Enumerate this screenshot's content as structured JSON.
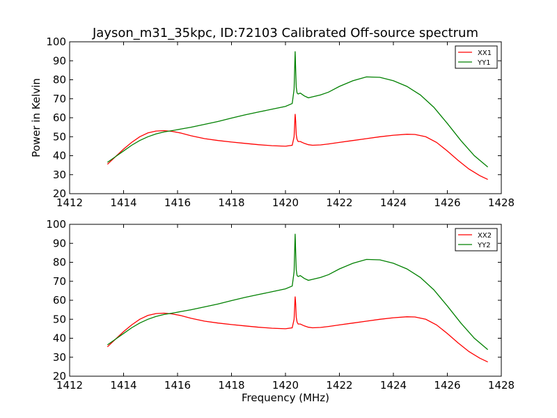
{
  "figure": {
    "title": "Jayson_m31_35kpc, ID:72103 Calibrated Off-source spectrum"
  },
  "chart_data": [
    {
      "type": "line",
      "title": "Jayson_m31_35kpc, ID:72103 Calibrated Off-source spectrum",
      "xlabel": "",
      "ylabel": "Power in Kelvin",
      "xlim": [
        1412,
        1428
      ],
      "ylim": [
        20,
        100
      ],
      "xticks": [
        1412,
        1414,
        1416,
        1418,
        1420,
        1422,
        1424,
        1426,
        1428
      ],
      "yticks": [
        20,
        30,
        40,
        50,
        60,
        70,
        80,
        90,
        100
      ],
      "grid": false,
      "legend_position": "top-right",
      "series": [
        {
          "name": "XX1",
          "color": "#ff0000",
          "x": [
            1413.4,
            1413.7,
            1414.0,
            1414.3,
            1414.6,
            1414.9,
            1415.2,
            1415.5,
            1415.8,
            1416.1,
            1416.5,
            1417.0,
            1417.5,
            1418.0,
            1418.5,
            1419.0,
            1419.5,
            1420.0,
            1420.25,
            1420.32,
            1420.36,
            1420.38,
            1420.4,
            1420.43,
            1420.47,
            1420.55,
            1420.7,
            1420.85,
            1421.0,
            1421.3,
            1421.6,
            1422.0,
            1422.5,
            1423.0,
            1423.5,
            1424.0,
            1424.5,
            1424.8,
            1425.2,
            1425.6,
            1426.0,
            1426.4,
            1426.8,
            1427.2,
            1427.5
          ],
          "y": [
            35.5,
            39.5,
            43.5,
            47.0,
            50.0,
            52.0,
            53.0,
            53.2,
            52.8,
            52.0,
            50.5,
            49.0,
            48.0,
            47.2,
            46.5,
            45.8,
            45.3,
            45.0,
            45.5,
            50.0,
            62.0,
            58.0,
            51.0,
            48.5,
            47.5,
            47.5,
            46.5,
            45.8,
            45.5,
            45.7,
            46.2,
            47.0,
            48.0,
            49.0,
            50.0,
            50.8,
            51.3,
            51.2,
            50.0,
            47.0,
            42.5,
            37.5,
            33.0,
            29.5,
            27.5
          ]
        },
        {
          "name": "YY1",
          "color": "#008000",
          "x": [
            1413.4,
            1413.7,
            1414.0,
            1414.3,
            1414.6,
            1414.9,
            1415.2,
            1415.5,
            1415.8,
            1416.1,
            1416.5,
            1417.0,
            1417.5,
            1418.0,
            1418.5,
            1419.0,
            1419.5,
            1420.0,
            1420.25,
            1420.32,
            1420.36,
            1420.38,
            1420.4,
            1420.43,
            1420.47,
            1420.55,
            1420.7,
            1420.85,
            1421.0,
            1421.3,
            1421.6,
            1422.0,
            1422.5,
            1423.0,
            1423.5,
            1424.0,
            1424.5,
            1425.0,
            1425.5,
            1426.0,
            1426.5,
            1427.0,
            1427.5
          ],
          "y": [
            36.5,
            39.5,
            42.5,
            45.5,
            48.0,
            50.0,
            51.5,
            52.5,
            53.2,
            54.0,
            55.0,
            56.5,
            58.0,
            59.8,
            61.5,
            63.0,
            64.5,
            66.0,
            67.5,
            75.0,
            95.0,
            85.0,
            76.0,
            73.0,
            72.5,
            73.0,
            71.5,
            70.5,
            71.0,
            72.0,
            73.5,
            76.5,
            79.5,
            81.5,
            81.3,
            79.5,
            76.5,
            72.0,
            65.5,
            57.0,
            48.0,
            40.0,
            34.0
          ]
        }
      ]
    },
    {
      "type": "line",
      "title": "",
      "xlabel": "Frequency (MHz)",
      "ylabel": "",
      "xlim": [
        1412,
        1428
      ],
      "ylim": [
        20,
        100
      ],
      "xticks": [
        1412,
        1414,
        1416,
        1418,
        1420,
        1422,
        1424,
        1426,
        1428
      ],
      "yticks": [
        20,
        30,
        40,
        50,
        60,
        70,
        80,
        90,
        100
      ],
      "grid": false,
      "legend_position": "top-right",
      "series": [
        {
          "name": "XX2",
          "color": "#ff0000",
          "x": [
            1413.4,
            1413.7,
            1414.0,
            1414.3,
            1414.6,
            1414.9,
            1415.2,
            1415.5,
            1415.8,
            1416.1,
            1416.5,
            1417.0,
            1417.5,
            1418.0,
            1418.5,
            1419.0,
            1419.5,
            1420.0,
            1420.25,
            1420.32,
            1420.36,
            1420.38,
            1420.4,
            1420.43,
            1420.47,
            1420.55,
            1420.7,
            1420.85,
            1421.0,
            1421.3,
            1421.6,
            1422.0,
            1422.5,
            1423.0,
            1423.5,
            1424.0,
            1424.5,
            1424.8,
            1425.2,
            1425.6,
            1426.0,
            1426.4,
            1426.8,
            1427.2,
            1427.5
          ],
          "y": [
            35.5,
            39.5,
            43.5,
            47.0,
            50.0,
            52.0,
            53.0,
            53.2,
            52.8,
            52.0,
            50.5,
            49.0,
            48.0,
            47.2,
            46.5,
            45.8,
            45.3,
            45.0,
            45.5,
            50.0,
            62.0,
            58.0,
            51.0,
            48.5,
            47.5,
            47.5,
            46.5,
            45.8,
            45.5,
            45.7,
            46.2,
            47.0,
            48.0,
            49.0,
            50.0,
            50.8,
            51.3,
            51.2,
            50.0,
            47.0,
            42.5,
            37.5,
            33.0,
            29.5,
            27.5
          ]
        },
        {
          "name": "YY2",
          "color": "#008000",
          "x": [
            1413.4,
            1413.7,
            1414.0,
            1414.3,
            1414.6,
            1414.9,
            1415.2,
            1415.5,
            1415.8,
            1416.1,
            1416.5,
            1417.0,
            1417.5,
            1418.0,
            1418.5,
            1419.0,
            1419.5,
            1420.0,
            1420.25,
            1420.32,
            1420.36,
            1420.38,
            1420.4,
            1420.43,
            1420.47,
            1420.55,
            1420.7,
            1420.85,
            1421.0,
            1421.3,
            1421.6,
            1422.0,
            1422.5,
            1423.0,
            1423.5,
            1424.0,
            1424.5,
            1425.0,
            1425.5,
            1426.0,
            1426.5,
            1427.0,
            1427.5
          ],
          "y": [
            36.5,
            39.5,
            42.5,
            45.5,
            48.0,
            50.0,
            51.5,
            52.5,
            53.2,
            54.0,
            55.0,
            56.5,
            58.0,
            59.8,
            61.5,
            63.0,
            64.5,
            66.0,
            67.5,
            75.0,
            95.0,
            85.0,
            76.0,
            73.0,
            72.5,
            73.0,
            71.5,
            70.5,
            71.0,
            72.0,
            73.5,
            76.5,
            79.5,
            81.5,
            81.3,
            79.5,
            76.5,
            72.0,
            65.5,
            57.0,
            48.0,
            40.0,
            34.0
          ]
        }
      ]
    }
  ]
}
